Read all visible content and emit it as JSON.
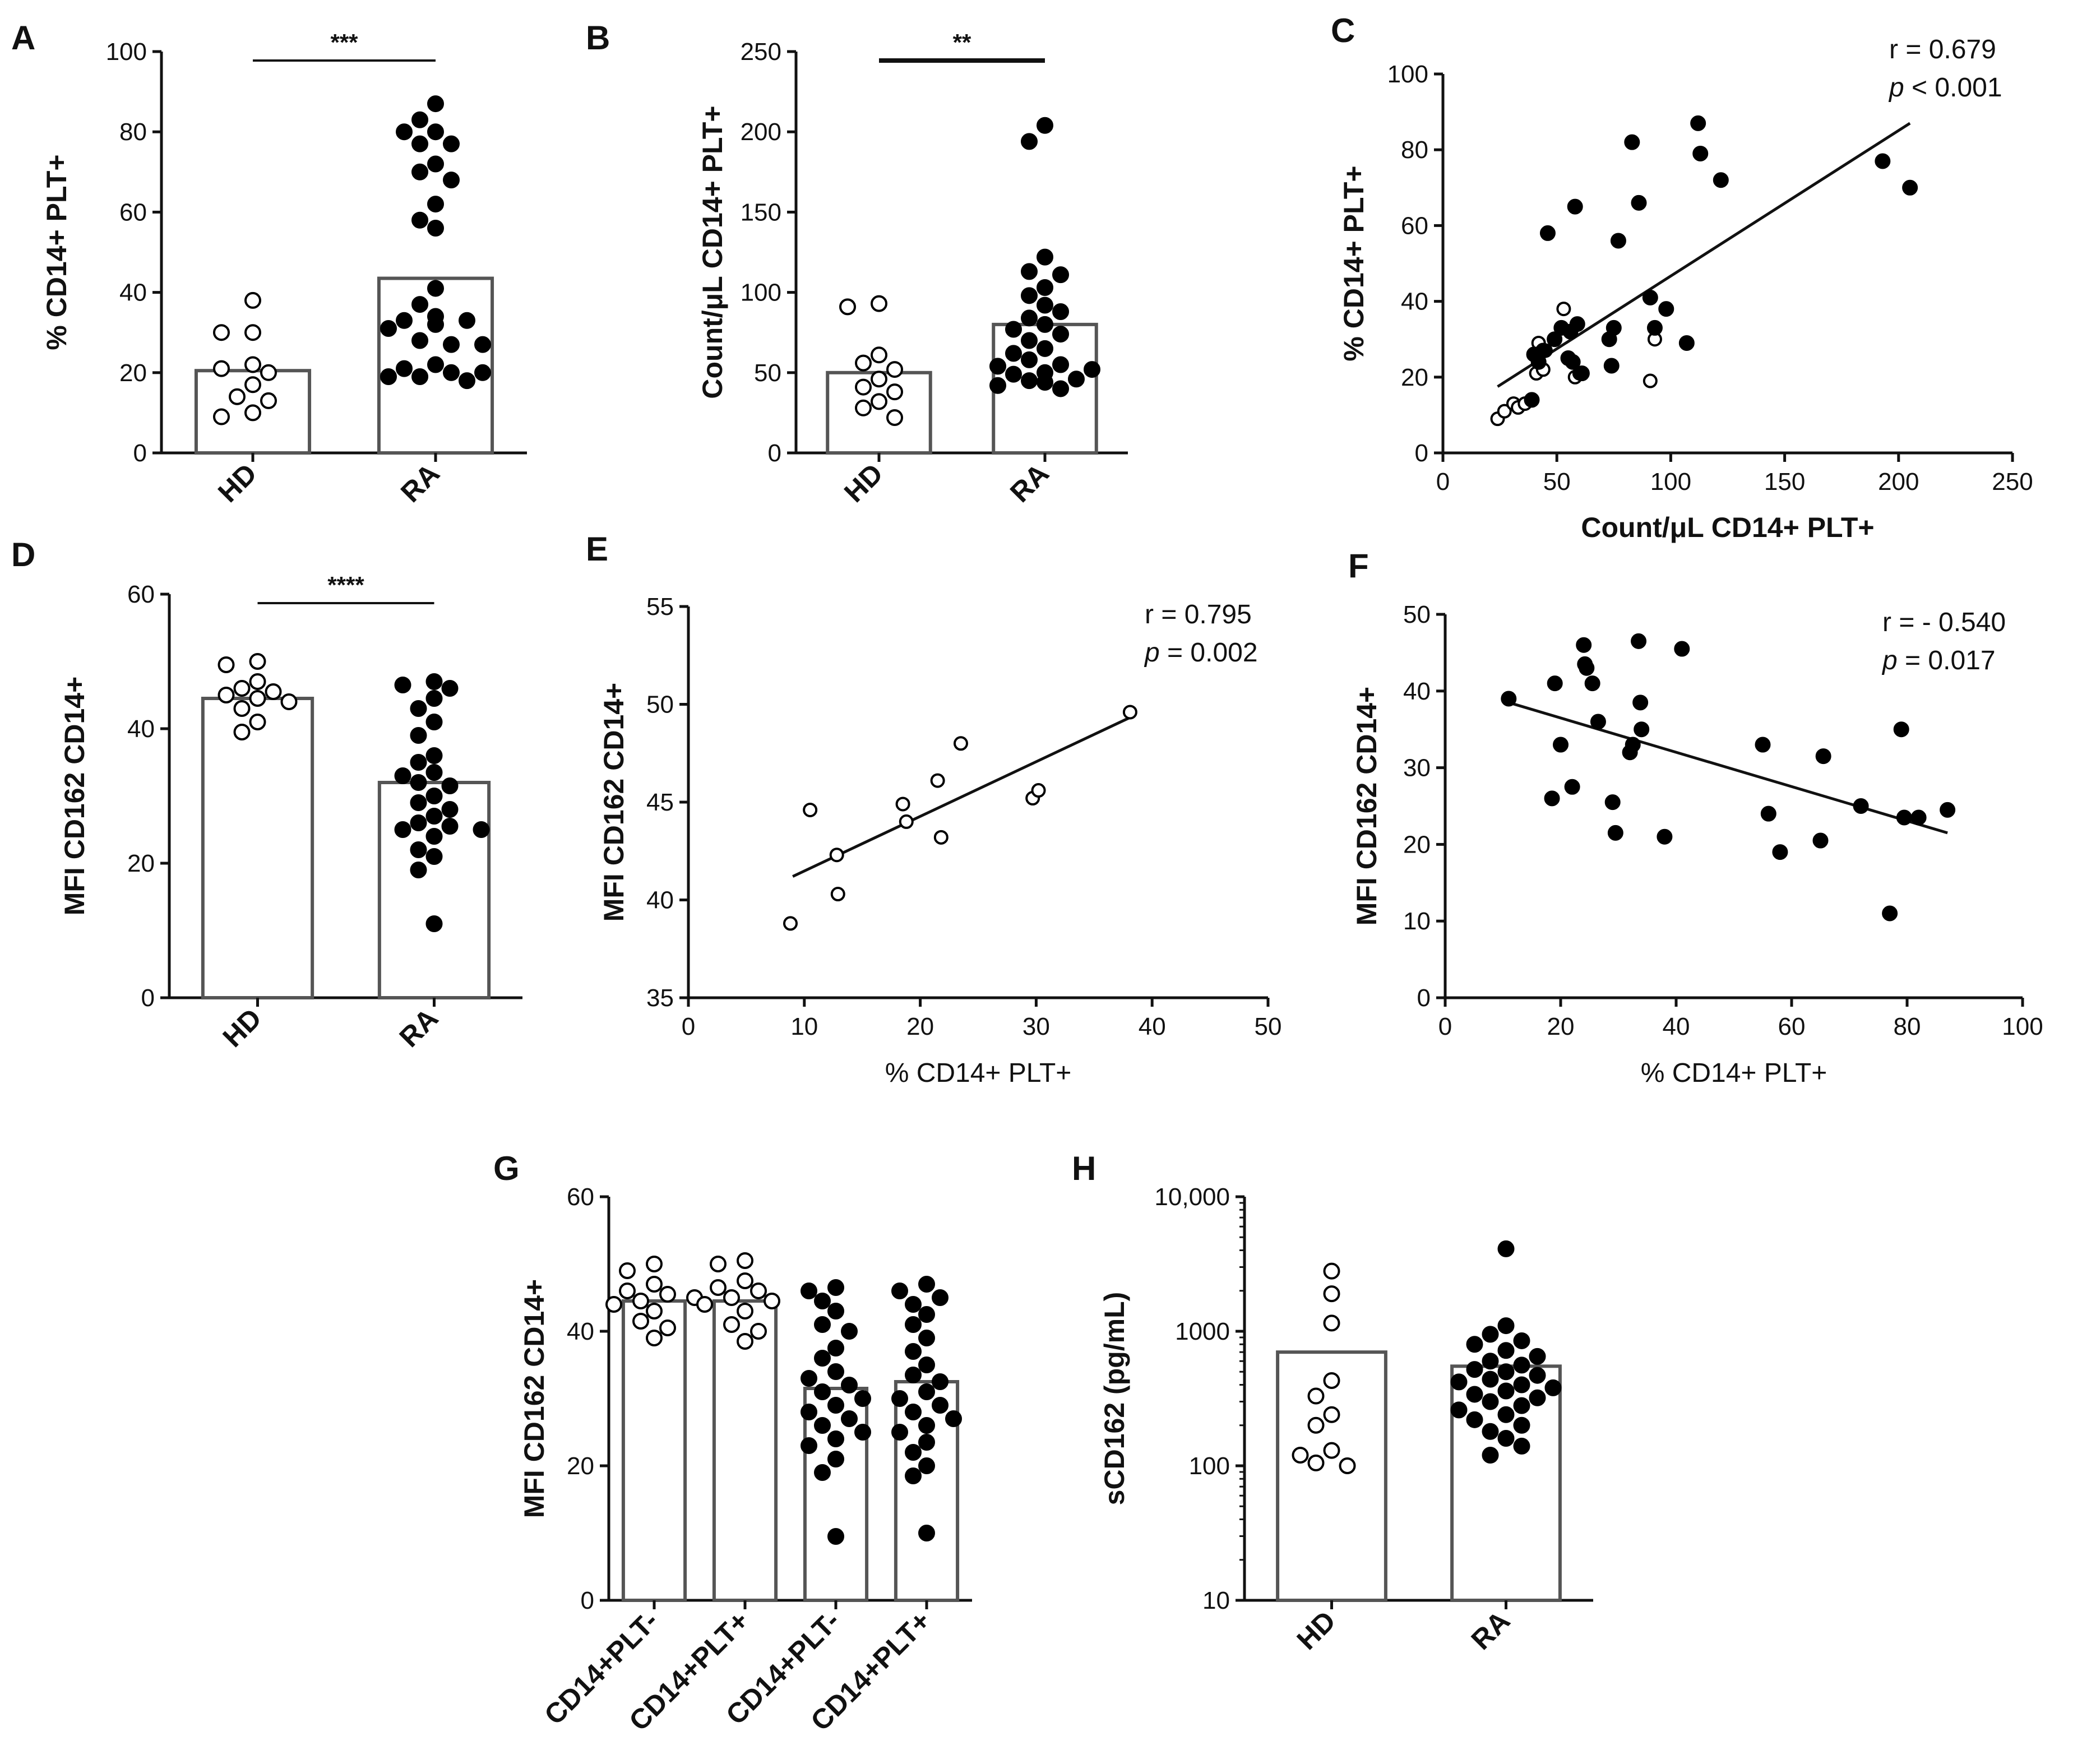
{
  "figure": {
    "colors": {
      "ink": "#111111",
      "bar_edge": "#555555",
      "filled": "#000000",
      "open": "#ffffff"
    }
  },
  "chart_data": [
    {
      "id": "A",
      "type": "bar",
      "panel_label": "A",
      "categories": [
        "HD",
        "RA"
      ],
      "values": [
        20.5,
        43.5
      ],
      "ylabel": "% CD14+ PLT+",
      "xlabel": "",
      "ylim": [
        0,
        100
      ],
      "yticks": [
        "0",
        "20",
        "40",
        "60",
        "80",
        "100"
      ],
      "significance": "***",
      "points": {
        "HD": [
          38,
          30,
          30,
          22,
          21,
          20,
          17,
          14,
          13,
          10,
          9
        ],
        "RA": [
          87,
          83,
          80,
          80,
          77,
          77,
          72,
          70,
          68,
          62,
          58,
          56,
          41,
          37,
          34,
          33,
          33,
          32,
          31,
          28,
          27,
          27,
          22,
          21,
          20,
          20,
          19,
          19,
          18
        ]
      }
    },
    {
      "id": "B",
      "type": "bar",
      "panel_label": "B",
      "categories": [
        "HD",
        "RA"
      ],
      "values": [
        50,
        80
      ],
      "ylabel": "Count/μL CD14+ PLT+",
      "xlabel": "",
      "ylim": [
        0,
        250
      ],
      "yticks": [
        "0",
        "50",
        "100",
        "150",
        "200",
        "250"
      ],
      "significance": "**",
      "points": {
        "HD": [
          93,
          91,
          61,
          56,
          52,
          46,
          41,
          38,
          32,
          28,
          22
        ],
        "RA": [
          204,
          194,
          122,
          113,
          111,
          103,
          98,
          92,
          88,
          84,
          80,
          77,
          74,
          70,
          65,
          62,
          58,
          55,
          54,
          52,
          50,
          49,
          46,
          45,
          44,
          42,
          40
        ]
      }
    },
    {
      "id": "C",
      "type": "scatter",
      "panel_label": "C",
      "xlabel": "Count/μL CD14+ PLT+",
      "ylabel": "% CD14+ PLT+",
      "xlim": [
        0,
        250
      ],
      "ylim": [
        0,
        100
      ],
      "xticks": [
        "0",
        "50",
        "100",
        "150",
        "200",
        "250"
      ],
      "yticks": [
        "0",
        "20",
        "40",
        "60",
        "80",
        "100"
      ],
      "stat_r": "r = 0.679",
      "stat_p": "p < 0.001",
      "fit": [
        [
          24,
          17.5
        ],
        [
          205,
          87
        ]
      ],
      "points_open": [
        [
          24,
          9
        ],
        [
          27,
          11
        ],
        [
          31,
          13
        ],
        [
          33,
          12
        ],
        [
          36,
          13
        ],
        [
          41,
          21
        ],
        [
          42,
          29
        ],
        [
          44,
          22
        ],
        [
          45,
          27
        ],
        [
          53,
          38
        ],
        [
          58,
          20
        ],
        [
          60,
          21
        ],
        [
          91,
          19
        ],
        [
          93,
          30
        ]
      ],
      "points_filled": [
        [
          39,
          14
        ],
        [
          40,
          26
        ],
        [
          42,
          24
        ],
        [
          44,
          27
        ],
        [
          46,
          58
        ],
        [
          49,
          30
        ],
        [
          52,
          33
        ],
        [
          55,
          25
        ],
        [
          56,
          32
        ],
        [
          57,
          24
        ],
        [
          58,
          65
        ],
        [
          59,
          34
        ],
        [
          61,
          21
        ],
        [
          73,
          30
        ],
        [
          74,
          23
        ],
        [
          75,
          33
        ],
        [
          77,
          56
        ],
        [
          83,
          82
        ],
        [
          86,
          66
        ],
        [
          91,
          41
        ],
        [
          93,
          33
        ],
        [
          98,
          38
        ],
        [
          107,
          29
        ],
        [
          112,
          87
        ],
        [
          113,
          79
        ],
        [
          122,
          72
        ],
        [
          193,
          77
        ],
        [
          205,
          70
        ]
      ]
    },
    {
      "id": "D",
      "type": "bar",
      "panel_label": "D",
      "categories": [
        "HD",
        "RA"
      ],
      "values": [
        44.5,
        32
      ],
      "ylabel": "MFI CD162 CD14+",
      "xlabel": "",
      "ylim": [
        0,
        60
      ],
      "yticks": [
        "0",
        "20",
        "40",
        "60"
      ],
      "significance": "****",
      "points": {
        "HD": [
          50,
          49.5,
          47,
          46,
          45.5,
          45,
          44.5,
          44,
          43,
          41,
          39.5
        ],
        "RA": [
          47,
          46.5,
          46,
          44.5,
          43,
          41,
          39,
          36,
          35,
          33.5,
          33,
          32,
          31.5,
          30,
          29,
          28,
          27,
          26,
          25.5,
          25,
          25,
          24,
          22,
          21,
          19,
          11
        ]
      }
    },
    {
      "id": "E",
      "type": "scatter",
      "panel_label": "E",
      "xlabel": "% CD14+ PLT+",
      "ylabel": "MFI CD162 CD14+",
      "xlim": [
        0,
        50
      ],
      "ylim": [
        35,
        55
      ],
      "xticks": [
        "0",
        "10",
        "20",
        "30",
        "40",
        "50"
      ],
      "yticks": [
        "35",
        "40",
        "45",
        "50",
        "55"
      ],
      "stat_r": "r = 0.795",
      "stat_p": "p = 0.002",
      "fit": [
        [
          9,
          41.2
        ],
        [
          38,
          49.3
        ]
      ],
      "points_open": [
        [
          8.8,
          38.8
        ],
        [
          10.5,
          44.6
        ],
        [
          12.8,
          42.3
        ],
        [
          12.9,
          40.3
        ],
        [
          18.5,
          44.9
        ],
        [
          18.8,
          44.0
        ],
        [
          21.5,
          46.1
        ],
        [
          21.8,
          43.2
        ],
        [
          23.5,
          48.0
        ],
        [
          29.7,
          45.2
        ],
        [
          30.2,
          45.6
        ],
        [
          38.1,
          49.6
        ]
      ]
    },
    {
      "id": "F",
      "type": "scatter",
      "panel_label": "F",
      "xlabel": "% CD14+ PLT+",
      "ylabel": "MFI CD162 CD14+",
      "xlim": [
        0,
        100
      ],
      "ylim": [
        0,
        50
      ],
      "xticks": [
        "0",
        "20",
        "40",
        "60",
        "80",
        "100"
      ],
      "yticks": [
        "0",
        "10",
        "20",
        "30",
        "40",
        "50"
      ],
      "stat_r": "r = - 0.540",
      "stat_p": "p = 0.017",
      "fit": [
        [
          11,
          38.5
        ],
        [
          87,
          21.5
        ]
      ],
      "points_filled": [
        [
          11,
          39
        ],
        [
          18.5,
          26
        ],
        [
          19,
          41
        ],
        [
          20,
          33
        ],
        [
          22,
          27.5
        ],
        [
          24,
          46
        ],
        [
          24.2,
          43.5
        ],
        [
          24.5,
          43
        ],
        [
          25.5,
          41
        ],
        [
          26.5,
          36
        ],
        [
          29,
          25.5
        ],
        [
          29.5,
          21.5
        ],
        [
          32,
          32
        ],
        [
          32.5,
          33
        ],
        [
          33.5,
          46.5
        ],
        [
          33.8,
          38.5
        ],
        [
          34,
          35
        ],
        [
          38,
          21
        ],
        [
          41,
          45.5
        ],
        [
          55,
          33
        ],
        [
          56,
          24
        ],
        [
          58,
          19
        ],
        [
          65,
          20.5
        ],
        [
          65.5,
          31.5
        ],
        [
          72,
          25
        ],
        [
          77,
          11
        ],
        [
          79,
          35
        ],
        [
          79.5,
          23.5
        ],
        [
          82,
          23.5
        ],
        [
          87,
          24.5
        ]
      ]
    },
    {
      "id": "G",
      "type": "bar",
      "panel_label": "G",
      "categories": [
        "CD14+PLT-",
        "CD14+PLT+",
        "CD14+PLT-",
        "CD14+PLT+"
      ],
      "values": [
        44.5,
        44.5,
        31.5,
        32.5
      ],
      "ylabel": "MFI CD162 CD14+",
      "xlabel": "",
      "ylim": [
        0,
        60
      ],
      "yticks": [
        "0",
        "20",
        "40",
        "60"
      ],
      "point_fill": [
        "open",
        "open",
        "filled",
        "filled"
      ],
      "points": [
        [
          50,
          49,
          47,
          46,
          45.5,
          45,
          44.5,
          44,
          43,
          41.5,
          40.5,
          39
        ],
        [
          50.5,
          50,
          47.5,
          46.5,
          46,
          45,
          44.5,
          44,
          43,
          41,
          40,
          38.5
        ],
        [
          46.5,
          46,
          44.5,
          43,
          41,
          40,
          37.5,
          36,
          34,
          33,
          32,
          31,
          30,
          29,
          28,
          27,
          26,
          25,
          24,
          23,
          21,
          19,
          9.5
        ],
        [
          47,
          46,
          45,
          44,
          42.5,
          41,
          39,
          37,
          35,
          33.5,
          32.5,
          31,
          30,
          29,
          28,
          27,
          26,
          25,
          23.5,
          22,
          20,
          18.5,
          10
        ]
      ]
    },
    {
      "id": "H",
      "type": "bar",
      "panel_label": "H",
      "categories": [
        "HD",
        "RA"
      ],
      "values": [
        700,
        550
      ],
      "ylabel": "sCD162 (pg/mL)",
      "xlabel": "",
      "yscale": "log",
      "ylim": [
        10,
        10000
      ],
      "yticks": [
        "10",
        "100",
        "1000",
        "10,000"
      ],
      "point_fill": [
        "open",
        "filled"
      ],
      "points": [
        [
          2800,
          1900,
          1150,
          430,
          330,
          240,
          200,
          130,
          120,
          105,
          100
        ],
        [
          4100,
          1100,
          950,
          850,
          800,
          720,
          650,
          600,
          560,
          520,
          500,
          470,
          440,
          420,
          400,
          380,
          360,
          340,
          320,
          300,
          280,
          260,
          240,
          220,
          200,
          180,
          160,
          140,
          120
        ]
      ]
    }
  ]
}
